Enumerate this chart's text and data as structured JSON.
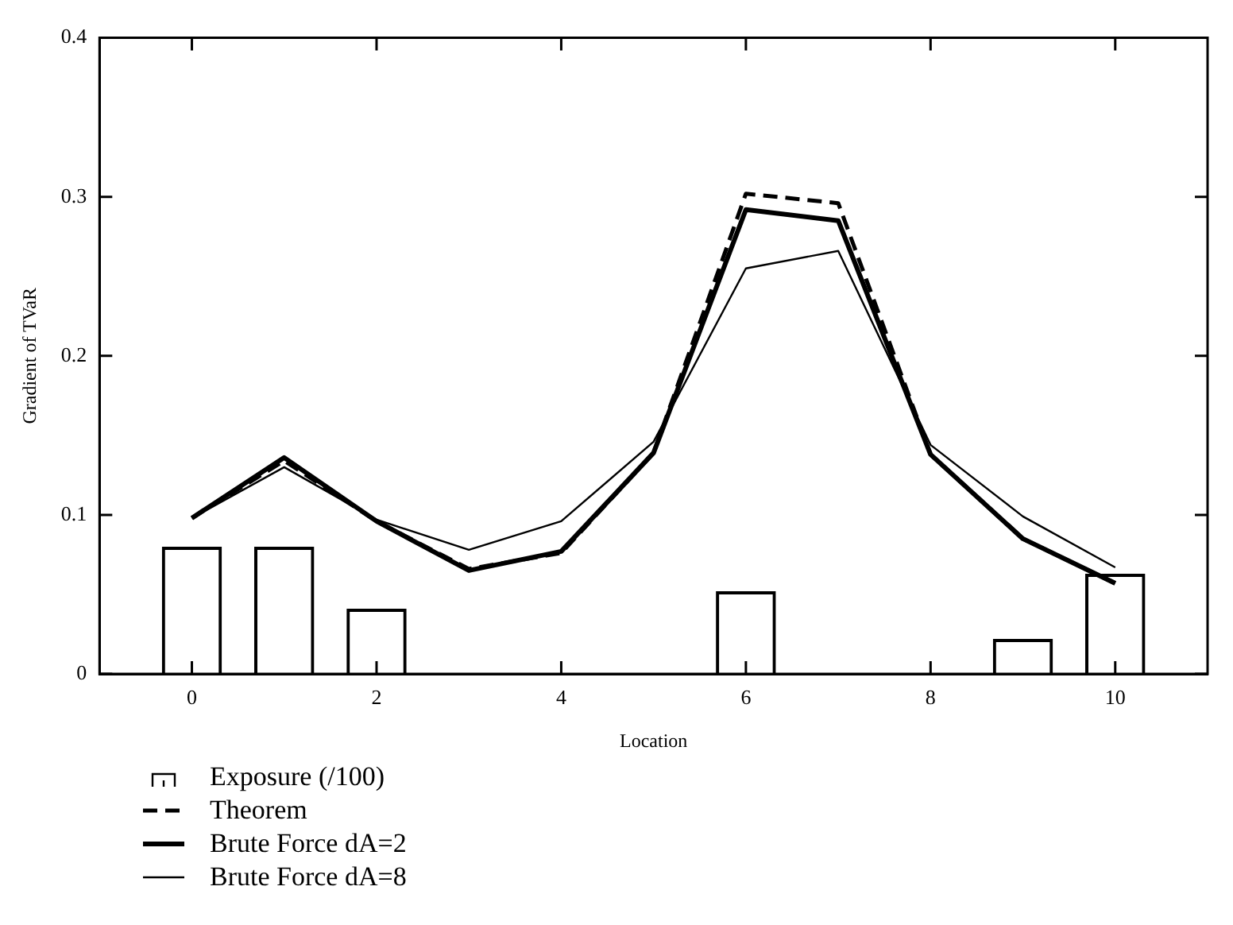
{
  "chart_data": {
    "type": "line",
    "xlabel": "Location",
    "ylabel": "Gradient of TVaR",
    "x": [
      0,
      1,
      2,
      3,
      4,
      5,
      6,
      7,
      8,
      9,
      10
    ],
    "series": [
      {
        "name": "Exposure (/100)",
        "type": "bar",
        "color": "#000000",
        "values": [
          0.08,
          0.08,
          0.041,
          0,
          0,
          0,
          0.052,
          0,
          0,
          0.022,
          0.063
        ]
      },
      {
        "name": "Theorem",
        "color": "#000000",
        "line_style": "dashed",
        "values": [
          0.098,
          0.134,
          0.096,
          0.066,
          0.076,
          0.139,
          0.302,
          0.296,
          0.138,
          0.085,
          0.057
        ]
      },
      {
        "name": "Brute Force dA=2",
        "color": "#000000",
        "values": [
          0.098,
          0.136,
          0.096,
          0.065,
          0.077,
          0.139,
          0.292,
          0.285,
          0.138,
          0.085,
          0.057
        ]
      },
      {
        "name": "Brute Force dA=8",
        "color": "#000000",
        "values": [
          0.098,
          0.13,
          0.097,
          0.078,
          0.096,
          0.146,
          0.255,
          0.266,
          0.144,
          0.099,
          0.067
        ]
      }
    ],
    "xlim": [
      -1,
      11
    ],
    "xticks": [
      0,
      2,
      4,
      6,
      8,
      10
    ],
    "ylim": [
      0,
      0.4
    ],
    "yticks": [
      0,
      0.1,
      0.2,
      0.3,
      0.4
    ],
    "grid": false,
    "legend": "bottom left",
    "marker": "none",
    "line_style": "solid"
  }
}
